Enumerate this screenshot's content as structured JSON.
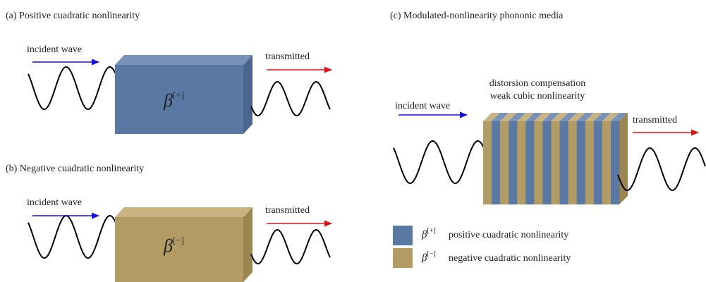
{
  "panels": [
    {
      "title": "(a) Positive cuadratic nonlinearity",
      "incident_label": "incident wave",
      "transmitted_label": "transmitted",
      "symbol": "β",
      "superscript": "[+]"
    },
    {
      "title": "(b) Negative cuadratic nonlinearity",
      "incident_label": "incident wave",
      "transmitted_label": "transmitted",
      "symbol": "β",
      "superscript": "[−]"
    }
  ],
  "panel_c": {
    "title": "(c) Modulated-nonlinearity phononic media",
    "annotation": [
      "distorsion compensation",
      "weak cubic nonlinearity"
    ],
    "incident_label": "incident wave",
    "transmitted_label": "transmitted",
    "legend": [
      {
        "symbol": "β",
        "superscript": "[+]",
        "label": "positive cuadratic nonlinearity"
      },
      {
        "symbol": "β",
        "superscript": "[−]",
        "label": "negative cuadratic nonlinearity"
      }
    ]
  }
}
